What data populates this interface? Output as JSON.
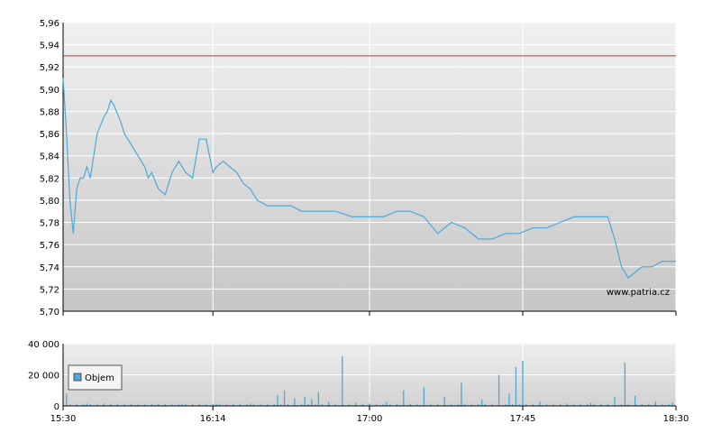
{
  "chart_data": [
    {
      "type": "line",
      "title": "",
      "xlabel": "",
      "ylabel": "",
      "ylim": [
        5.7,
        5.96
      ],
      "yticks": [
        "5,70",
        "5,72",
        "5,74",
        "5,76",
        "5,78",
        "5,80",
        "5,82",
        "5,84",
        "5,86",
        "5,88",
        "5,90",
        "5,92",
        "5,94",
        "5,96"
      ],
      "xlim": [
        "15:30",
        "18:30"
      ],
      "grid": true,
      "reference_line": {
        "value": 5.93,
        "color": "#cc3333"
      },
      "watermark": "www.patria.cz",
      "series": [
        {
          "color": "#4fa8d8",
          "x": [
            "15:30",
            "15:31",
            "15:32",
            "15:33",
            "15:34",
            "15:35",
            "15:36",
            "15:37",
            "15:38",
            "15:40",
            "15:42",
            "15:43",
            "15:44",
            "15:45",
            "15:47",
            "15:48",
            "15:50",
            "15:52",
            "15:54",
            "15:55",
            "15:56",
            "15:58",
            "16:00",
            "16:02",
            "16:04",
            "16:06",
            "16:08",
            "16:10",
            "16:12",
            "16:14",
            "16:15",
            "16:17",
            "16:19",
            "16:21",
            "16:23",
            "16:25",
            "16:27",
            "16:30",
            "16:33",
            "16:37",
            "16:40",
            "16:45",
            "16:50",
            "16:55",
            "17:00",
            "17:04",
            "17:08",
            "17:12",
            "17:16",
            "17:20",
            "17:24",
            "17:28",
            "17:32",
            "17:36",
            "17:40",
            "17:44",
            "17:48",
            "17:52",
            "17:56",
            "18:00",
            "18:04",
            "18:08",
            "18:10",
            "18:12",
            "18:14",
            "18:16",
            "18:18",
            "18:20",
            "18:23",
            "18:26",
            "18:30"
          ],
          "y": [
            5.91,
            5.86,
            5.8,
            5.77,
            5.81,
            5.82,
            5.82,
            5.83,
            5.82,
            5.86,
            5.875,
            5.88,
            5.89,
            5.885,
            5.87,
            5.86,
            5.85,
            5.84,
            5.83,
            5.82,
            5.825,
            5.81,
            5.805,
            5.825,
            5.835,
            5.825,
            5.82,
            5.855,
            5.855,
            5.825,
            5.83,
            5.835,
            5.83,
            5.825,
            5.815,
            5.81,
            5.8,
            5.795,
            5.795,
            5.795,
            5.79,
            5.79,
            5.79,
            5.785,
            5.785,
            5.785,
            5.79,
            5.79,
            5.785,
            5.77,
            5.78,
            5.775,
            5.765,
            5.765,
            5.77,
            5.77,
            5.775,
            5.775,
            5.78,
            5.785,
            5.785,
            5.785,
            5.785,
            5.765,
            5.74,
            5.73,
            5.735,
            5.74,
            5.74,
            5.745,
            5.745
          ]
        }
      ]
    },
    {
      "type": "bar",
      "title": "",
      "xlabel": "",
      "ylabel": "",
      "ylim": [
        0,
        40000
      ],
      "yticks": [
        "0",
        "20 000",
        "40 000"
      ],
      "xticks": [
        "15:30",
        "16:14",
        "17:00",
        "17:45",
        "18:30"
      ],
      "grid": true,
      "legend": {
        "position": "left",
        "label": "Objem",
        "color": "#4fa8d8"
      },
      "series": [
        {
          "name": "Objem",
          "color": "#4fa8d8",
          "x": [
            "15:31",
            "15:37",
            "15:42",
            "15:50",
            "15:58",
            "16:05",
            "16:15",
            "16:25",
            "16:33",
            "16:35",
            "16:38",
            "16:41",
            "16:43",
            "16:45",
            "16:48",
            "16:52",
            "16:56",
            "17:00",
            "17:05",
            "17:10",
            "17:16",
            "17:22",
            "17:27",
            "17:33",
            "17:38",
            "17:41",
            "17:43",
            "17:45",
            "17:50",
            "17:58",
            "18:05",
            "18:12",
            "18:15",
            "18:18",
            "18:24",
            "18:29"
          ],
          "values": [
            8000,
            1500,
            1500,
            1200,
            1000,
            1000,
            1200,
            1500,
            7000,
            10000,
            5000,
            6000,
            4500,
            9000,
            2500,
            32000,
            2000,
            1500,
            2500,
            10000,
            12000,
            6000,
            15000,
            4000,
            20000,
            8000,
            25000,
            29000,
            3000,
            1500,
            2000,
            6000,
            28000,
            6500,
            3000,
            2000
          ]
        }
      ]
    }
  ]
}
